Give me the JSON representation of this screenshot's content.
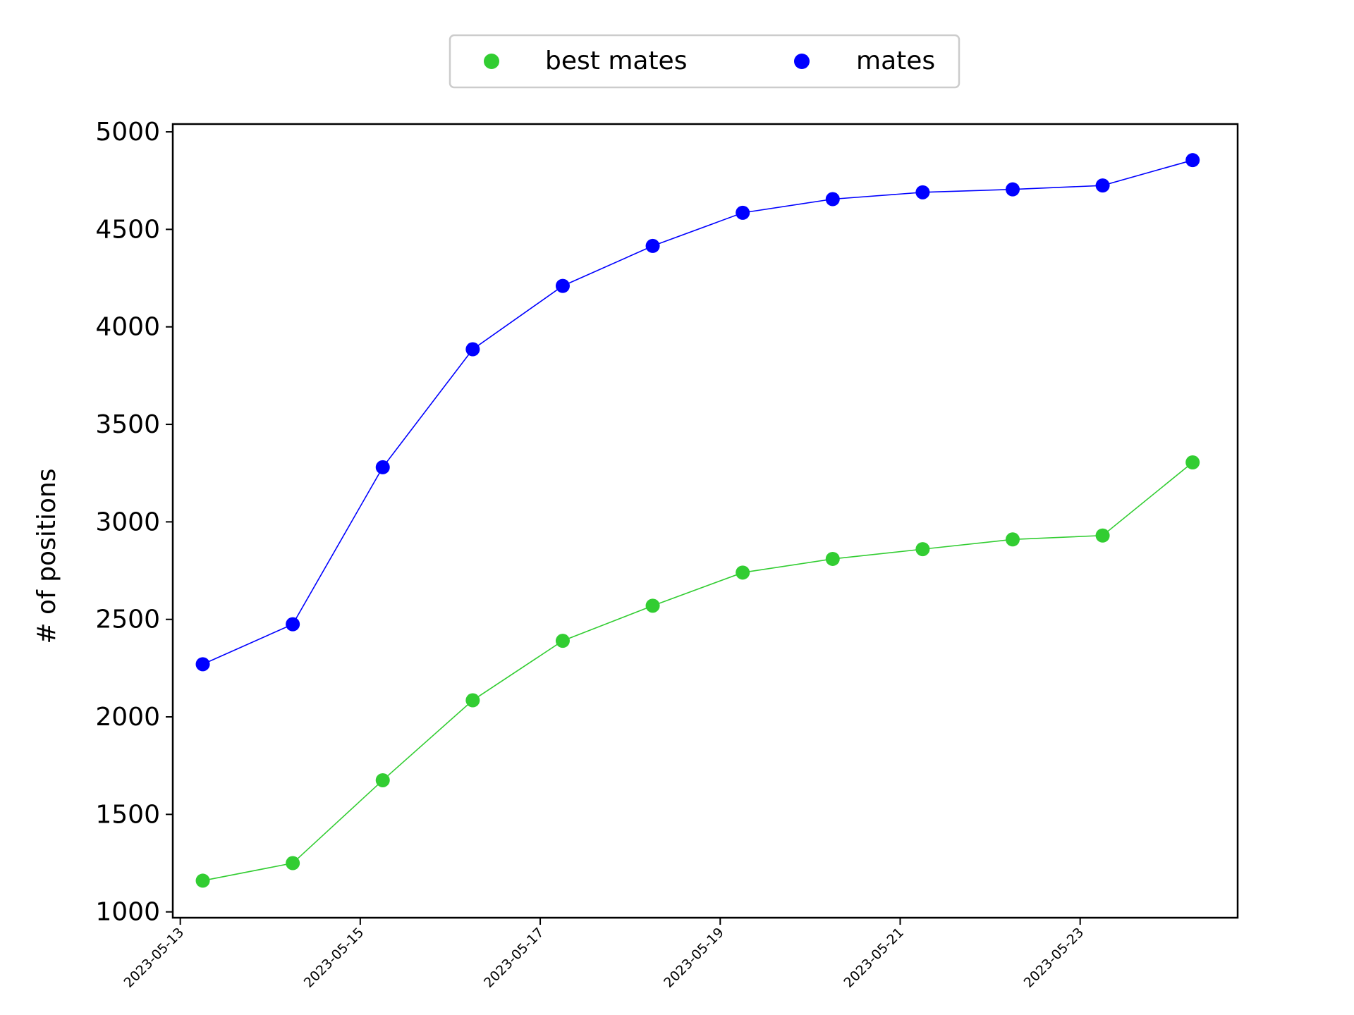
{
  "chart_data": {
    "type": "line",
    "title": "",
    "xlabel": "",
    "ylabel": "# of positions",
    "x": [
      "2023-05-13T06:00",
      "2023-05-14T06:00",
      "2023-05-15T06:00",
      "2023-05-16T06:00",
      "2023-05-17T06:00",
      "2023-05-18T06:00",
      "2023-05-19T06:00",
      "2023-05-20T06:00",
      "2023-05-21T06:00",
      "2023-05-22T06:00",
      "2023-05-23T06:00",
      "2023-05-24T06:00"
    ],
    "series": [
      {
        "name": "best mates",
        "color": "#32cd32",
        "values": [
          1160,
          1250,
          1675,
          2085,
          2390,
          2570,
          2740,
          2810,
          2860,
          2910,
          2930,
          3305
        ]
      },
      {
        "name": "mates",
        "color": "#0000ff",
        "values": [
          2270,
          2475,
          3280,
          3885,
          4210,
          4415,
          4585,
          4655,
          4690,
          4705,
          4725,
          4855
        ]
      }
    ],
    "xlim": [
      "2023-05-12T22:00",
      "2023-05-24T18:00"
    ],
    "ylim": [
      970,
      5040
    ],
    "xticks": [
      "2023-05-13",
      "2023-05-15",
      "2023-05-17",
      "2023-05-19",
      "2023-05-21",
      "2023-05-23"
    ],
    "yticks": [
      1000,
      1500,
      2000,
      2500,
      3000,
      3500,
      4000,
      4500,
      5000
    ],
    "grid": false,
    "legend_position": "top-center"
  }
}
